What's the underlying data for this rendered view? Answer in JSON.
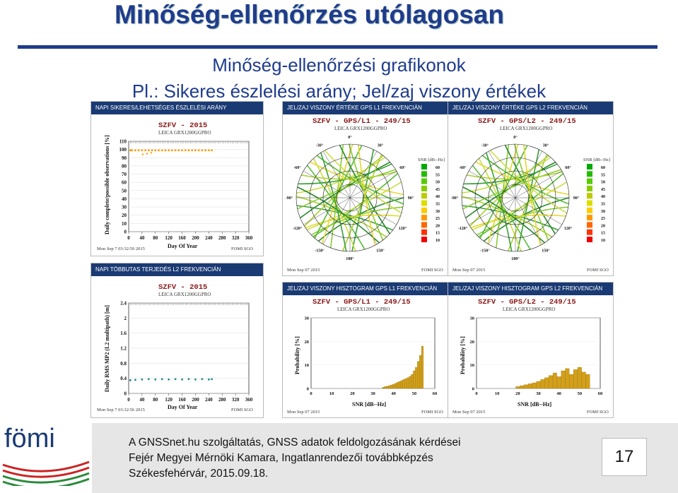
{
  "title": "Minőség-ellenőrzés utólagosan",
  "subtitle1": "Minőség-ellenőrzési grafikonok",
  "subtitle2": "Pl.: Sikeres észlelési arány; Jel/zaj viszony értékek",
  "colors": {
    "title": "#1f3c8c",
    "header": "#1a3a73",
    "plot_title": "#8b1a1a",
    "orange": "#ff9900",
    "green": "#33aa33",
    "teal": "#228888",
    "bar": "#d4a017"
  },
  "panels": {
    "ratio": {
      "header": "NAPI SIKERES/LEHETSÉGES ÉSZLELÉSI ARÁNY",
      "plot_title": "SZFV - 2015",
      "plot_sub": "LEICA GRX1200GGPRO",
      "ylabel": "Daily complete/possible observations [%]",
      "xlabel": "Day Of Year",
      "foot_left": "Mon Sep  7 03:32:59 2015",
      "foot_right": "FOMI SGO",
      "yticks": [
        "110",
        "100",
        "90",
        "80",
        "70",
        "60",
        "50",
        "40",
        "30",
        "20",
        "10",
        "0"
      ],
      "xticks": [
        "0",
        "40",
        "80",
        "120",
        "160",
        "200",
        "240",
        "280",
        "320",
        "360"
      ]
    },
    "snr_l1": {
      "header": "JEL/ZAJ VISZONY ÉRTÉKE GPS L1 FREKVENCIÁN",
      "plot_title": "SZFV - GPS/L1 - 249/15",
      "plot_sub": "LEICA GRX1200GGPRO",
      "scale_title": "SNR [dB--Hz]",
      "foot_left": "Mon Sep 07 2015",
      "foot_right": "FOMI SGO"
    },
    "snr_l2": {
      "header": "JEL/ZAJ VISZONY ÉRTÉKE GPS L2 FREKVENCIÁN",
      "plot_title": "SZFV - GPS/L2 - 249/15",
      "plot_sub": "LEICA GRX1200GGPRO",
      "scale_title": "SNR [dB--Hz]",
      "foot_left": "Mon Sep 07 2015",
      "foot_right": "FOMI SGO"
    },
    "multipath": {
      "header": "NAPI TÖBBUTAS TERJEDÉS L2 FREKVENCIÁN",
      "plot_title": "SZFV - 2015",
      "plot_sub": "LEICA GRX1200GGPRO",
      "ylabel": "Daily RMS MP2 (L2 multipath) [m]",
      "xlabel": "Day Of Year",
      "foot_left": "Mon Sep  7 03:32:56 2015",
      "foot_right": "FOMI SGO",
      "yticks": [
        "2.4",
        "2",
        "1.6",
        "1.2",
        "0.8",
        "0.4",
        "0"
      ],
      "xticks": [
        "0",
        "40",
        "80",
        "120",
        "160",
        "200",
        "240",
        "280",
        "320",
        "360"
      ]
    },
    "hist_l1": {
      "header": "JEL/ZAJ VISZONY HISZTOGRAM GPS L1 FREKVENCIÁN",
      "plot_title": "SZFV - GPS/L1 - 249/15",
      "plot_sub": "LEICA GRX1200GGPRO",
      "ylabel": "Probability [%]",
      "xlabel": "SNR [dB--Hz]",
      "foot_left": "Mon Sep 07 2015",
      "foot_right": "FOMI SGO",
      "yticks": [
        "30",
        "20",
        "10",
        "0"
      ],
      "xticks": [
        "0",
        "10",
        "20",
        "30",
        "40",
        "50",
        "60"
      ]
    },
    "hist_l2": {
      "header": "JEL/ZAJ VISZONY HISZTOGRAM GPS L2 FREKVENCIÁN",
      "plot_title": "SZFV - GPS/L2 - 249/15",
      "plot_sub": "LEICA GRX1200GGPRO",
      "ylabel": "Probability [%]",
      "xlabel": "SNR [dB--Hz]",
      "foot_left": "Mon Sep 07 2015",
      "foot_right": "FOMI SGO",
      "yticks": [
        "30",
        "20",
        "10",
        "0"
      ],
      "xticks": [
        "0",
        "10",
        "20",
        "30",
        "40",
        "50",
        "60"
      ]
    }
  },
  "snr_scale": [
    "60",
    "55",
    "50",
    "45",
    "40",
    "35",
    "30",
    "25",
    "20",
    "15",
    "10"
  ],
  "skyplot_labels": [
    "0°",
    "30°",
    "60°",
    "90°",
    "120°",
    "150°",
    "180°",
    "-150°",
    "-120°",
    "-90°",
    "-60°",
    "-30°"
  ],
  "chart_data": [
    {
      "type": "scatter",
      "title": "SZFV - 2015",
      "ylabel": "Daily complete/possible observations [%]",
      "xlabel": "Day Of Year",
      "xlim": [
        0,
        360
      ],
      "ylim": [
        0,
        110
      ],
      "series": [
        {
          "x": [
            5,
            10,
            20,
            30,
            40,
            50,
            60,
            70,
            80,
            90,
            100,
            110,
            120,
            130,
            140,
            150,
            160,
            170,
            180,
            190,
            200,
            210,
            220,
            230,
            240,
            249
          ],
          "y": [
            99,
            99,
            99,
            99,
            99,
            99,
            99,
            99,
            99,
            99,
            99,
            99,
            99,
            99,
            99,
            99,
            99,
            99,
            99,
            99,
            99,
            99,
            99,
            99,
            99,
            99
          ]
        }
      ],
      "outliers": {
        "x": [
          42,
          55,
          68
        ],
        "y": [
          94,
          95,
          96
        ]
      }
    },
    {
      "type": "scatter",
      "title": "SZFV - 2015",
      "ylabel": "Daily RMS MP2 (L2 multipath) [m]",
      "xlabel": "Day Of Year",
      "xlim": [
        0,
        360
      ],
      "ylim": [
        0,
        2.4
      ],
      "series": [
        {
          "x": [
            5,
            20,
            40,
            60,
            80,
            100,
            120,
            140,
            160,
            180,
            200,
            220,
            240,
            249
          ],
          "y": [
            0.35,
            0.36,
            0.37,
            0.38,
            0.37,
            0.38,
            0.37,
            0.38,
            0.37,
            0.38,
            0.37,
            0.38,
            0.37,
            0.38
          ]
        }
      ]
    },
    {
      "type": "bar",
      "title": "SZFV - GPS/L1 - 249/15",
      "xlabel": "SNR [dB--Hz]",
      "ylabel": "Probability [%]",
      "xlim": [
        0,
        60
      ],
      "ylim": [
        0,
        30
      ],
      "categories": [
        35,
        36,
        37,
        38,
        39,
        40,
        41,
        42,
        43,
        44,
        45,
        46,
        47,
        48,
        49,
        50,
        51,
        52,
        53,
        54
      ],
      "values": [
        0.5,
        0.8,
        1.0,
        1.2,
        1.5,
        1.8,
        2.2,
        2.6,
        3.0,
        3.4,
        3.8,
        4.2,
        4.6,
        5.2,
        6.0,
        7.5,
        9.0,
        11.5,
        14.0,
        18.0
      ]
    },
    {
      "type": "bar",
      "title": "SZFV - GPS/L2 - 249/15",
      "xlabel": "SNR [dB--Hz]",
      "ylabel": "Probability [%]",
      "xlim": [
        0,
        60
      ],
      "ylim": [
        0,
        30
      ],
      "categories": [
        20,
        22,
        24,
        26,
        28,
        30,
        32,
        34,
        36,
        38,
        40,
        42,
        44,
        46,
        48,
        50,
        52,
        54
      ],
      "values": [
        0.8,
        1.2,
        1.6,
        2.0,
        2.4,
        3.0,
        3.8,
        4.6,
        5.5,
        6.6,
        5.0,
        7.5,
        8.5,
        6.0,
        8.0,
        9.0,
        7.0,
        6.0
      ]
    }
  ],
  "footer": {
    "logo": "fömi",
    "line1": "A GNSSnet.hu szolgáltatás, GNSS adatok feldolgozásának kérdései",
    "line2": "Fejér Megyei Mérnöki Kamara, Ingatlanrendezői továbbképzés",
    "line3": "Székesfehérvár, 2015.09.18.",
    "page": "17"
  }
}
